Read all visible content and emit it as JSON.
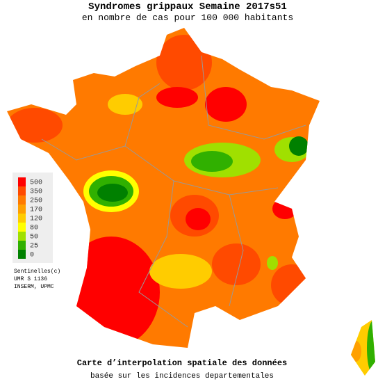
{
  "title": "Syndromes grippaux Semaine 2017s51",
  "subtitle": "en nombre de cas pour 100 000 habitants",
  "legend": [
    {
      "value": 500,
      "color": "#ff0000"
    },
    {
      "value": 350,
      "color": "#ff4a00"
    },
    {
      "value": 250,
      "color": "#ff7a00"
    },
    {
      "value": 170,
      "color": "#ffa000"
    },
    {
      "value": 120,
      "color": "#ffcc00"
    },
    {
      "value": 80,
      "color": "#ffff00"
    },
    {
      "value": 50,
      "color": "#a0e000"
    },
    {
      "value": 25,
      "color": "#30b000"
    },
    {
      "value": 0,
      "color": "#008000"
    }
  ],
  "credits": [
    "Sentinelles(c)",
    "UMR S 1136",
    "INSERM, UPMC"
  ],
  "footer": {
    "line1": "Carte d’interpolation spatiale des données",
    "line2": "basée sur les incidences departementales"
  }
}
